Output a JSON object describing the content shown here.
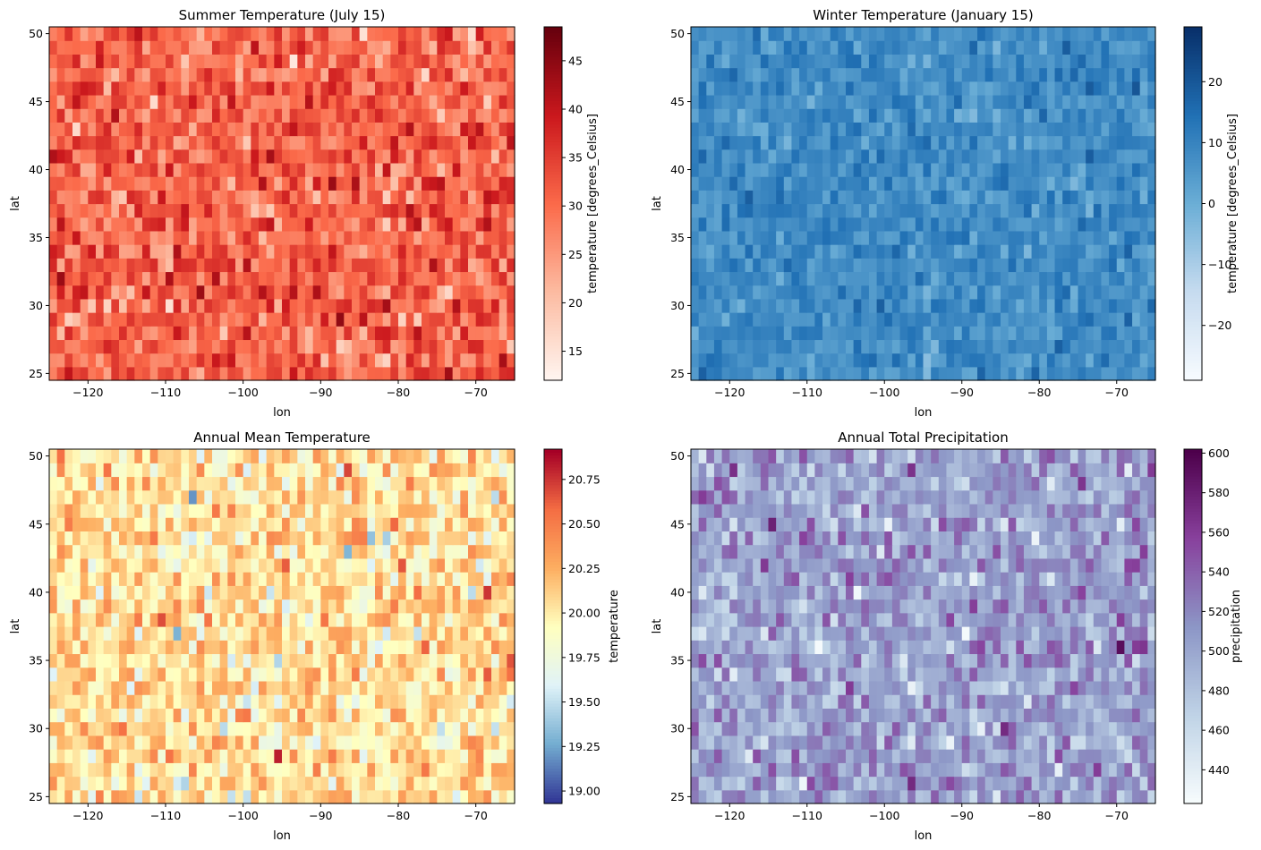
{
  "chart_data": [
    {
      "type": "heatmap",
      "title": "Summer Temperature (July 15)",
      "xlabel": "lon",
      "ylabel": "lat",
      "x_range": [
        -125,
        -65
      ],
      "y_range": [
        24.5,
        50.5
      ],
      "xlim": [
        -125,
        -65
      ],
      "ylim": [
        24.5,
        50.5
      ],
      "grid_shape": {
        "cols": 60,
        "rows": 26
      },
      "x_ticks": [
        -120,
        -110,
        -100,
        -90,
        -80,
        -70
      ],
      "x_tick_labels": [
        "−120",
        "−110",
        "−100",
        "−90",
        "−80",
        "−70"
      ],
      "y_ticks": [
        25,
        30,
        35,
        40,
        45,
        50
      ],
      "y_tick_labels": [
        "25",
        "30",
        "35",
        "40",
        "45",
        "50"
      ],
      "colormap": "Reds",
      "color_stops": [
        "#fff5f0",
        "#fcbba1",
        "#fb6a4a",
        "#cb181d",
        "#67000d"
      ],
      "colorbar": {
        "label": "temperature [degrees_Celsius]",
        "range": [
          12,
          48.5
        ],
        "ticks": [
          15,
          20,
          25,
          30,
          35,
          40,
          45
        ],
        "tick_labels": [
          "15",
          "20",
          "25",
          "30",
          "35",
          "40",
          "45"
        ]
      },
      "value_stats": {
        "mean": 31,
        "std": 5,
        "min": 12,
        "max": 48.5
      }
    },
    {
      "type": "heatmap",
      "title": "Winter Temperature (January 15)",
      "xlabel": "lon",
      "ylabel": "lat",
      "x_range": [
        -125,
        -65
      ],
      "y_range": [
        24.5,
        50.5
      ],
      "xlim": [
        -125,
        -65
      ],
      "ylim": [
        24.5,
        50.5
      ],
      "grid_shape": {
        "cols": 60,
        "rows": 26
      },
      "x_ticks": [
        -120,
        -110,
        -100,
        -90,
        -80,
        -70
      ],
      "x_tick_labels": [
        "−120",
        "−110",
        "−100",
        "−90",
        "−80",
        "−70"
      ],
      "y_ticks": [
        25,
        30,
        35,
        40,
        45,
        50
      ],
      "y_tick_labels": [
        "25",
        "30",
        "35",
        "40",
        "45",
        "50"
      ],
      "colormap": "Blues",
      "color_stops": [
        "#f7fbff",
        "#c6dbef",
        "#6baed6",
        "#2171b5",
        "#08306b"
      ],
      "colorbar": {
        "label": "temperature [degrees_Celsius]",
        "range": [
          -29,
          29
        ],
        "ticks": [
          -20,
          -10,
          0,
          10,
          20
        ],
        "tick_labels": [
          "−20",
          "−10",
          "0",
          "10",
          "20"
        ]
      },
      "value_stats": {
        "mean": 8,
        "std": 4,
        "min": -29,
        "max": 29
      }
    },
    {
      "type": "heatmap",
      "title": "Annual Mean Temperature",
      "xlabel": "lon",
      "ylabel": "lat",
      "x_range": [
        -125,
        -65
      ],
      "y_range": [
        24.5,
        50.5
      ],
      "xlim": [
        -125,
        -65
      ],
      "ylim": [
        24.5,
        50.5
      ],
      "grid_shape": {
        "cols": 60,
        "rows": 26
      },
      "x_ticks": [
        -120,
        -110,
        -100,
        -90,
        -80,
        -70
      ],
      "x_tick_labels": [
        "−120",
        "−110",
        "−100",
        "−90",
        "−80",
        "−70"
      ],
      "y_ticks": [
        25,
        30,
        35,
        40,
        45,
        50
      ],
      "y_tick_labels": [
        "25",
        "30",
        "35",
        "40",
        "45",
        "50"
      ],
      "colormap": "RdYlBu_r",
      "color_stops": [
        "#313695",
        "#74add1",
        "#e0f3f8",
        "#ffffbf",
        "#fdae61",
        "#f46d43",
        "#a50026"
      ],
      "colorbar": {
        "label": "temperature",
        "range": [
          18.93,
          20.92
        ],
        "ticks": [
          19.0,
          19.25,
          19.5,
          19.75,
          20.0,
          20.25,
          20.5,
          20.75
        ],
        "tick_labels": [
          "19.00",
          "19.25",
          "19.50",
          "19.75",
          "20.00",
          "20.25",
          "20.50",
          "20.75"
        ]
      },
      "value_stats": {
        "mean": 20.05,
        "std": 0.22,
        "min": 18.93,
        "max": 20.92
      }
    },
    {
      "type": "heatmap",
      "title": "Annual Total Precipitation",
      "xlabel": "lon",
      "ylabel": "lat",
      "x_range": [
        -125,
        -65
      ],
      "y_range": [
        24.5,
        50.5
      ],
      "xlim": [
        -125,
        -65
      ],
      "ylim": [
        24.5,
        50.5
      ],
      "grid_shape": {
        "cols": 60,
        "rows": 26
      },
      "x_ticks": [
        -120,
        -110,
        -100,
        -90,
        -80,
        -70
      ],
      "x_tick_labels": [
        "−120",
        "−110",
        "−100",
        "−90",
        "−80",
        "−70"
      ],
      "y_ticks": [
        25,
        30,
        35,
        40,
        45,
        50
      ],
      "y_tick_labels": [
        "25",
        "30",
        "35",
        "40",
        "45",
        "50"
      ],
      "colormap": "BuPu",
      "color_stops": [
        "#f7fcfd",
        "#bfd3e6",
        "#8c96c6",
        "#88419d",
        "#4d004b"
      ],
      "colorbar": {
        "label": "precipitation",
        "range": [
          423,
          602
        ],
        "ticks": [
          440,
          460,
          480,
          500,
          520,
          540,
          560,
          580,
          600
        ],
        "tick_labels": [
          "440",
          "460",
          "480",
          "500",
          "520",
          "540",
          "560",
          "580",
          "600"
        ]
      },
      "value_stats": {
        "mean": 505,
        "std": 24,
        "min": 423,
        "max": 602
      }
    }
  ]
}
